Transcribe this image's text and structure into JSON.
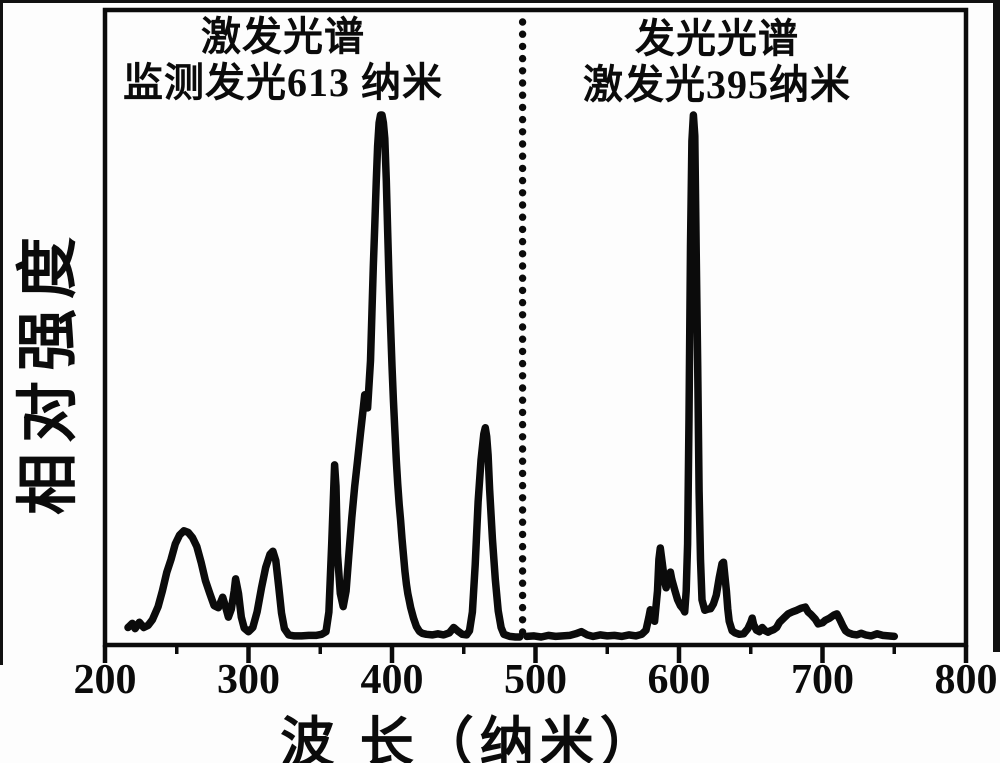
{
  "figure": {
    "background": "#fdfdfd",
    "ink_color": "#0b0b0b"
  },
  "chart_data": {
    "type": "line",
    "title": "",
    "xlabel": "波 长（纳米）",
    "ylabel": "相对强度",
    "grid": false,
    "legend": "none",
    "x_axis": {
      "min": 200,
      "max": 800,
      "major_ticks": [
        200,
        300,
        400,
        500,
        600,
        700,
        800
      ],
      "minor_ticks": [
        250,
        350,
        450,
        550,
        650,
        750
      ],
      "unit": "纳米"
    },
    "y_axis": {
      "label": "相对强度",
      "ticks": [],
      "range_relative": [
        0,
        1
      ]
    },
    "annotations": {
      "left": {
        "line1": "激发光谱",
        "line2": "监测发光613 纳米"
      },
      "right": {
        "line1": "发光光谱",
        "line2": "激发光395纳米"
      }
    },
    "separator_nm": 491,
    "excitation_peaks_nm": [
      {
        "nm": 254,
        "rel": 0.21,
        "note": "broad band"
      },
      {
        "nm": 296,
        "rel": 0.11
      },
      {
        "nm": 317,
        "rel": 0.17
      },
      {
        "nm": 360,
        "rel": 0.33
      },
      {
        "nm": 383,
        "rel": 0.47,
        "note": "shoulder"
      },
      {
        "nm": 393,
        "rel": 1.0,
        "note": "maximum"
      },
      {
        "nm": 465,
        "rel": 0.4
      }
    ],
    "emission_peaks_nm": [
      {
        "nm": 587,
        "rel": 0.17
      },
      {
        "nm": 594,
        "rel": 0.13
      },
      {
        "nm": 610,
        "rel": 1.0,
        "note": "maximum"
      },
      {
        "nm": 631,
        "rel": 0.15
      },
      {
        "nm": 651,
        "rel": 0.04
      },
      {
        "nm": 688,
        "rel": 0.06,
        "note": "broad band"
      },
      {
        "nm": 710,
        "rel": 0.05
      }
    ],
    "series": [
      {
        "name": "激发光谱（监测发光613 纳米）",
        "points": [
          [
            216,
            0.02
          ],
          [
            219,
            0.028
          ],
          [
            221,
            0.018
          ],
          [
            224,
            0.03
          ],
          [
            227,
            0.02
          ],
          [
            230,
            0.024
          ],
          [
            233,
            0.035
          ],
          [
            237,
            0.06
          ],
          [
            240,
            0.09
          ],
          [
            243,
            0.125
          ],
          [
            246,
            0.15
          ],
          [
            249,
            0.18
          ],
          [
            252,
            0.197
          ],
          [
            255,
            0.205
          ],
          [
            258,
            0.202
          ],
          [
            261,
            0.192
          ],
          [
            264,
            0.175
          ],
          [
            267,
            0.145
          ],
          [
            270,
            0.11
          ],
          [
            273,
            0.085
          ],
          [
            276,
            0.062
          ],
          [
            279,
            0.058
          ],
          [
            282,
            0.078
          ],
          [
            284,
            0.06
          ],
          [
            286,
            0.04
          ],
          [
            288,
            0.055
          ],
          [
            290,
            0.09
          ],
          [
            291,
            0.113
          ],
          [
            293,
            0.085
          ],
          [
            295,
            0.04
          ],
          [
            297,
            0.019
          ],
          [
            300,
            0.012
          ],
          [
            303,
            0.02
          ],
          [
            306,
            0.05
          ],
          [
            309,
            0.095
          ],
          [
            312,
            0.135
          ],
          [
            315,
            0.16
          ],
          [
            317,
            0.166
          ],
          [
            319,
            0.148
          ],
          [
            321,
            0.1
          ],
          [
            323,
            0.048
          ],
          [
            325,
            0.018
          ],
          [
            328,
            0.006
          ],
          [
            332,
            0.004
          ],
          [
            337,
            0.004
          ],
          [
            342,
            0.005
          ],
          [
            347,
            0.005
          ],
          [
            351,
            0.007
          ],
          [
            354,
            0.012
          ],
          [
            356,
            0.05
          ],
          [
            358,
            0.18
          ],
          [
            360,
            0.331
          ],
          [
            361,
            0.29
          ],
          [
            362,
            0.16
          ],
          [
            364,
            0.085
          ],
          [
            366,
            0.06
          ],
          [
            368,
            0.09
          ],
          [
            370,
            0.16
          ],
          [
            372,
            0.23
          ],
          [
            374,
            0.29
          ],
          [
            376,
            0.34
          ],
          [
            378,
            0.39
          ],
          [
            380,
            0.44
          ],
          [
            381,
            0.465
          ],
          [
            382,
            0.45
          ],
          [
            383,
            0.44
          ],
          [
            385,
            0.53
          ],
          [
            386,
            0.62
          ],
          [
            387,
            0.71
          ],
          [
            388,
            0.79
          ],
          [
            389,
            0.87
          ],
          [
            390,
            0.94
          ],
          [
            391,
            0.985
          ],
          [
            392,
            1.0
          ],
          [
            393,
            1.0
          ],
          [
            394,
            0.985
          ],
          [
            395,
            0.955
          ],
          [
            396,
            0.875
          ],
          [
            397,
            0.775
          ],
          [
            398,
            0.68
          ],
          [
            399,
            0.595
          ],
          [
            400,
            0.52
          ],
          [
            401,
            0.455
          ],
          [
            402,
            0.395
          ],
          [
            403,
            0.34
          ],
          [
            404,
            0.295
          ],
          [
            405,
            0.255
          ],
          [
            406,
            0.225
          ],
          [
            407,
            0.19
          ],
          [
            408,
            0.158
          ],
          [
            409,
            0.128
          ],
          [
            410,
            0.103
          ],
          [
            411,
            0.085
          ],
          [
            412,
            0.072
          ],
          [
            413,
            0.058
          ],
          [
            415,
            0.038
          ],
          [
            417,
            0.022
          ],
          [
            419,
            0.013
          ],
          [
            421,
            0.009
          ],
          [
            424,
            0.007
          ],
          [
            428,
            0.006
          ],
          [
            432,
            0.008
          ],
          [
            436,
            0.006
          ],
          [
            440,
            0.01
          ],
          [
            443,
            0.02
          ],
          [
            446,
            0.013
          ],
          [
            449,
            0.007
          ],
          [
            452,
            0.006
          ],
          [
            454,
            0.014
          ],
          [
            456,
            0.05
          ],
          [
            458,
            0.14
          ],
          [
            460,
            0.26
          ],
          [
            462,
            0.34
          ],
          [
            464,
            0.39
          ],
          [
            465,
            0.402
          ],
          [
            466,
            0.385
          ],
          [
            467,
            0.35
          ],
          [
            468,
            0.285
          ],
          [
            470,
            0.19
          ],
          [
            472,
            0.112
          ],
          [
            474,
            0.052
          ],
          [
            476,
            0.02
          ],
          [
            478,
            0.007
          ],
          [
            482,
            0.003
          ],
          [
            486,
            0.002
          ],
          [
            489,
            0.002
          ]
        ]
      },
      {
        "name": "发光光谱（激发光395纳米）",
        "points": [
          [
            494,
            0.003
          ],
          [
            499,
            0.004
          ],
          [
            504,
            0.002
          ],
          [
            509,
            0.005
          ],
          [
            514,
            0.003
          ],
          [
            519,
            0.004
          ],
          [
            524,
            0.005
          ],
          [
            528,
            0.008
          ],
          [
            532,
            0.012
          ],
          [
            536,
            0.006
          ],
          [
            540,
            0.003
          ],
          [
            545,
            0.006
          ],
          [
            550,
            0.004
          ],
          [
            555,
            0.005
          ],
          [
            560,
            0.003
          ],
          [
            565,
            0.006
          ],
          [
            570,
            0.004
          ],
          [
            574,
            0.007
          ],
          [
            577,
            0.015
          ],
          [
            579,
            0.04
          ],
          [
            580,
            0.054
          ],
          [
            582,
            0.042
          ],
          [
            583,
            0.032
          ],
          [
            585,
            0.09
          ],
          [
            586,
            0.15
          ],
          [
            587,
            0.172
          ],
          [
            588,
            0.15
          ],
          [
            590,
            0.108
          ],
          [
            591,
            0.096
          ],
          [
            593,
            0.118
          ],
          [
            594,
            0.126
          ],
          [
            595,
            0.112
          ],
          [
            597,
            0.092
          ],
          [
            599,
            0.073
          ],
          [
            601,
            0.062
          ],
          [
            603,
            0.055
          ],
          [
            604,
            0.05
          ],
          [
            605,
            0.09
          ],
          [
            606,
            0.18
          ],
          [
            607,
            0.42
          ],
          [
            608,
            0.75
          ],
          [
            609,
            0.95
          ],
          [
            610,
            1.0
          ],
          [
            611,
            0.96
          ],
          [
            612,
            0.74
          ],
          [
            613,
            0.52
          ],
          [
            614,
            0.28
          ],
          [
            615,
            0.15
          ],
          [
            616,
            0.073
          ],
          [
            618,
            0.053
          ],
          [
            620,
            0.055
          ],
          [
            622,
            0.056
          ],
          [
            624,
            0.065
          ],
          [
            626,
            0.082
          ],
          [
            628,
            0.115
          ],
          [
            630,
            0.142
          ],
          [
            631,
            0.145
          ],
          [
            632,
            0.118
          ],
          [
            633,
            0.09
          ],
          [
            634,
            0.055
          ],
          [
            635,
            0.032
          ],
          [
            637,
            0.014
          ],
          [
            639,
            0.01
          ],
          [
            642,
            0.007
          ],
          [
            645,
            0.008
          ],
          [
            648,
            0.018
          ],
          [
            650,
            0.03
          ],
          [
            651,
            0.038
          ],
          [
            652,
            0.026
          ],
          [
            654,
            0.015
          ],
          [
            656,
            0.012
          ],
          [
            658,
            0.02
          ],
          [
            660,
            0.014
          ],
          [
            662,
            0.011
          ],
          [
            664,
            0.014
          ],
          [
            666,
            0.016
          ],
          [
            668,
            0.02
          ],
          [
            670,
            0.03
          ],
          [
            673,
            0.038
          ],
          [
            676,
            0.046
          ],
          [
            679,
            0.05
          ],
          [
            682,
            0.053
          ],
          [
            685,
            0.057
          ],
          [
            688,
            0.059
          ],
          [
            690,
            0.05
          ],
          [
            692,
            0.045
          ],
          [
            695,
            0.036
          ],
          [
            697,
            0.027
          ],
          [
            700,
            0.029
          ],
          [
            702,
            0.034
          ],
          [
            705,
            0.038
          ],
          [
            708,
            0.044
          ],
          [
            710,
            0.046
          ],
          [
            712,
            0.036
          ],
          [
            714,
            0.024
          ],
          [
            716,
            0.014
          ],
          [
            718,
            0.01
          ],
          [
            721,
            0.007
          ],
          [
            724,
            0.006
          ],
          [
            727,
            0.009
          ],
          [
            730,
            0.006
          ],
          [
            734,
            0.004
          ],
          [
            738,
            0.008
          ],
          [
            742,
            0.005
          ],
          [
            746,
            0.004
          ],
          [
            750,
            0.003
          ]
        ]
      }
    ]
  }
}
